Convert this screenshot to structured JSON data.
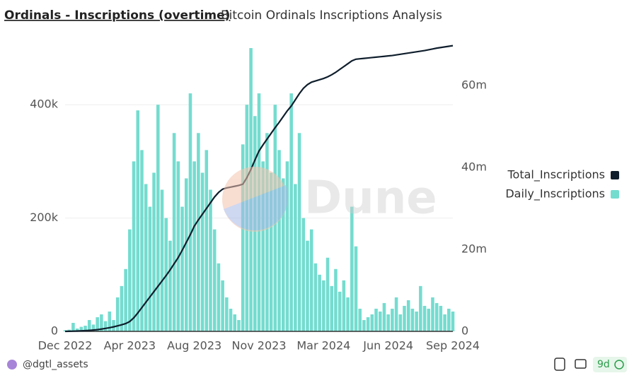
{
  "chart_data": {
    "type": "bar",
    "title": "Ordinals - Inscriptions (overtime)",
    "subtitle": "Bitcoin Ordinals Inscriptions Analysis",
    "watermark": "Dune",
    "categories": [
      "Dec 2022",
      null,
      null,
      null,
      null,
      null,
      null,
      null,
      null,
      null,
      null,
      null,
      null,
      null,
      null,
      null,
      "Apr 2023",
      null,
      null,
      null,
      null,
      null,
      null,
      null,
      null,
      null,
      null,
      null,
      null,
      null,
      null,
      null,
      "Aug 2023",
      null,
      null,
      null,
      null,
      null,
      null,
      null,
      null,
      null,
      null,
      null,
      null,
      null,
      null,
      null,
      "Nov 2023",
      null,
      null,
      null,
      null,
      null,
      null,
      null,
      null,
      null,
      null,
      null,
      null,
      null,
      null,
      null,
      "Mar 2024",
      null,
      null,
      null,
      null,
      null,
      null,
      null,
      null,
      null,
      null,
      null,
      null,
      null,
      null,
      null,
      "Jun 2024",
      null,
      null,
      null,
      null,
      null,
      null,
      null,
      null,
      null,
      null,
      null,
      null,
      null,
      null,
      null,
      "Sep 2024"
    ],
    "series": [
      {
        "name": "Total_Inscriptions",
        "color": "#0f1e2c",
        "axis": "y2",
        "type": "line",
        "values": [
          0,
          20000,
          50000,
          90000,
          130000,
          180000,
          240000,
          320000,
          420000,
          560000,
          720000,
          900000,
          1100000,
          1350000,
          1600000,
          1900000,
          2400000,
          3300000,
          4500000,
          5800000,
          7100000,
          8400000,
          9700000,
          11000000,
          12300000,
          13600000,
          15000000,
          16500000,
          18000000,
          19800000,
          21700000,
          23600000,
          25700000,
          27200000,
          28600000,
          30000000,
          31400000,
          32800000,
          33900000,
          34700000,
          35000000,
          35200000,
          35400000,
          35600000,
          35900000,
          37500000,
          39500000,
          41800000,
          44000000,
          45500000,
          46900000,
          48300000,
          49700000,
          51000000,
          52400000,
          53800000,
          55000000,
          56500000,
          58000000,
          59300000,
          60200000,
          60800000,
          61100000,
          61400000,
          61700000,
          62100000,
          62600000,
          63200000,
          63900000,
          64600000,
          65300000,
          66000000,
          66400000,
          66500000,
          66600000,
          66700000,
          66800000,
          66900000,
          67000000,
          67100000,
          67200000,
          67300000,
          67450000,
          67600000,
          67750000,
          67900000,
          68050000,
          68200000,
          68350000,
          68500000,
          68700000,
          68900000,
          69100000,
          69250000,
          69400000,
          69550000,
          69700000
        ]
      },
      {
        "name": "Daily_Inscriptions",
        "color": "#74dccf",
        "type": "bar",
        "values": [
          2000,
          3000,
          15000,
          5000,
          8000,
          10000,
          20000,
          12000,
          25000,
          30000,
          18000,
          35000,
          20000,
          60000,
          80000,
          110000,
          180000,
          300000,
          390000,
          320000,
          260000,
          220000,
          280000,
          400000,
          250000,
          200000,
          160000,
          350000,
          300000,
          220000,
          270000,
          420000,
          300000,
          350000,
          280000,
          320000,
          250000,
          180000,
          120000,
          90000,
          60000,
          40000,
          30000,
          20000,
          330000,
          400000,
          500000,
          380000,
          420000,
          300000,
          350000,
          280000,
          400000,
          320000,
          270000,
          300000,
          420000,
          260000,
          350000,
          200000,
          160000,
          180000,
          120000,
          100000,
          90000,
          130000,
          80000,
          110000,
          70000,
          90000,
          60000,
          220000,
          150000,
          40000,
          20000,
          25000,
          30000,
          40000,
          35000,
          50000,
          30000,
          40000,
          60000,
          30000,
          45000,
          55000,
          40000,
          35000,
          80000,
          45000,
          40000,
          60000,
          50000,
          45000,
          30000,
          40000,
          35000
        ]
      }
    ],
    "ylim": [
      0,
      510000
    ],
    "yticks": [
      0,
      {
        "value": 200000,
        "label": "200k"
      },
      {
        "value": 400000,
        "label": "400k"
      }
    ],
    "y2lim": [
      0,
      70500000
    ],
    "y2ticks": [
      0,
      {
        "value": 20000000,
        "label": "20m"
      },
      {
        "value": 40000000,
        "label": "40m"
      },
      {
        "value": 60000000,
        "label": "60m"
      }
    ],
    "grid": true,
    "legend": "right"
  },
  "footer": {
    "author": "@dgtl_assets",
    "badge": "9d"
  }
}
